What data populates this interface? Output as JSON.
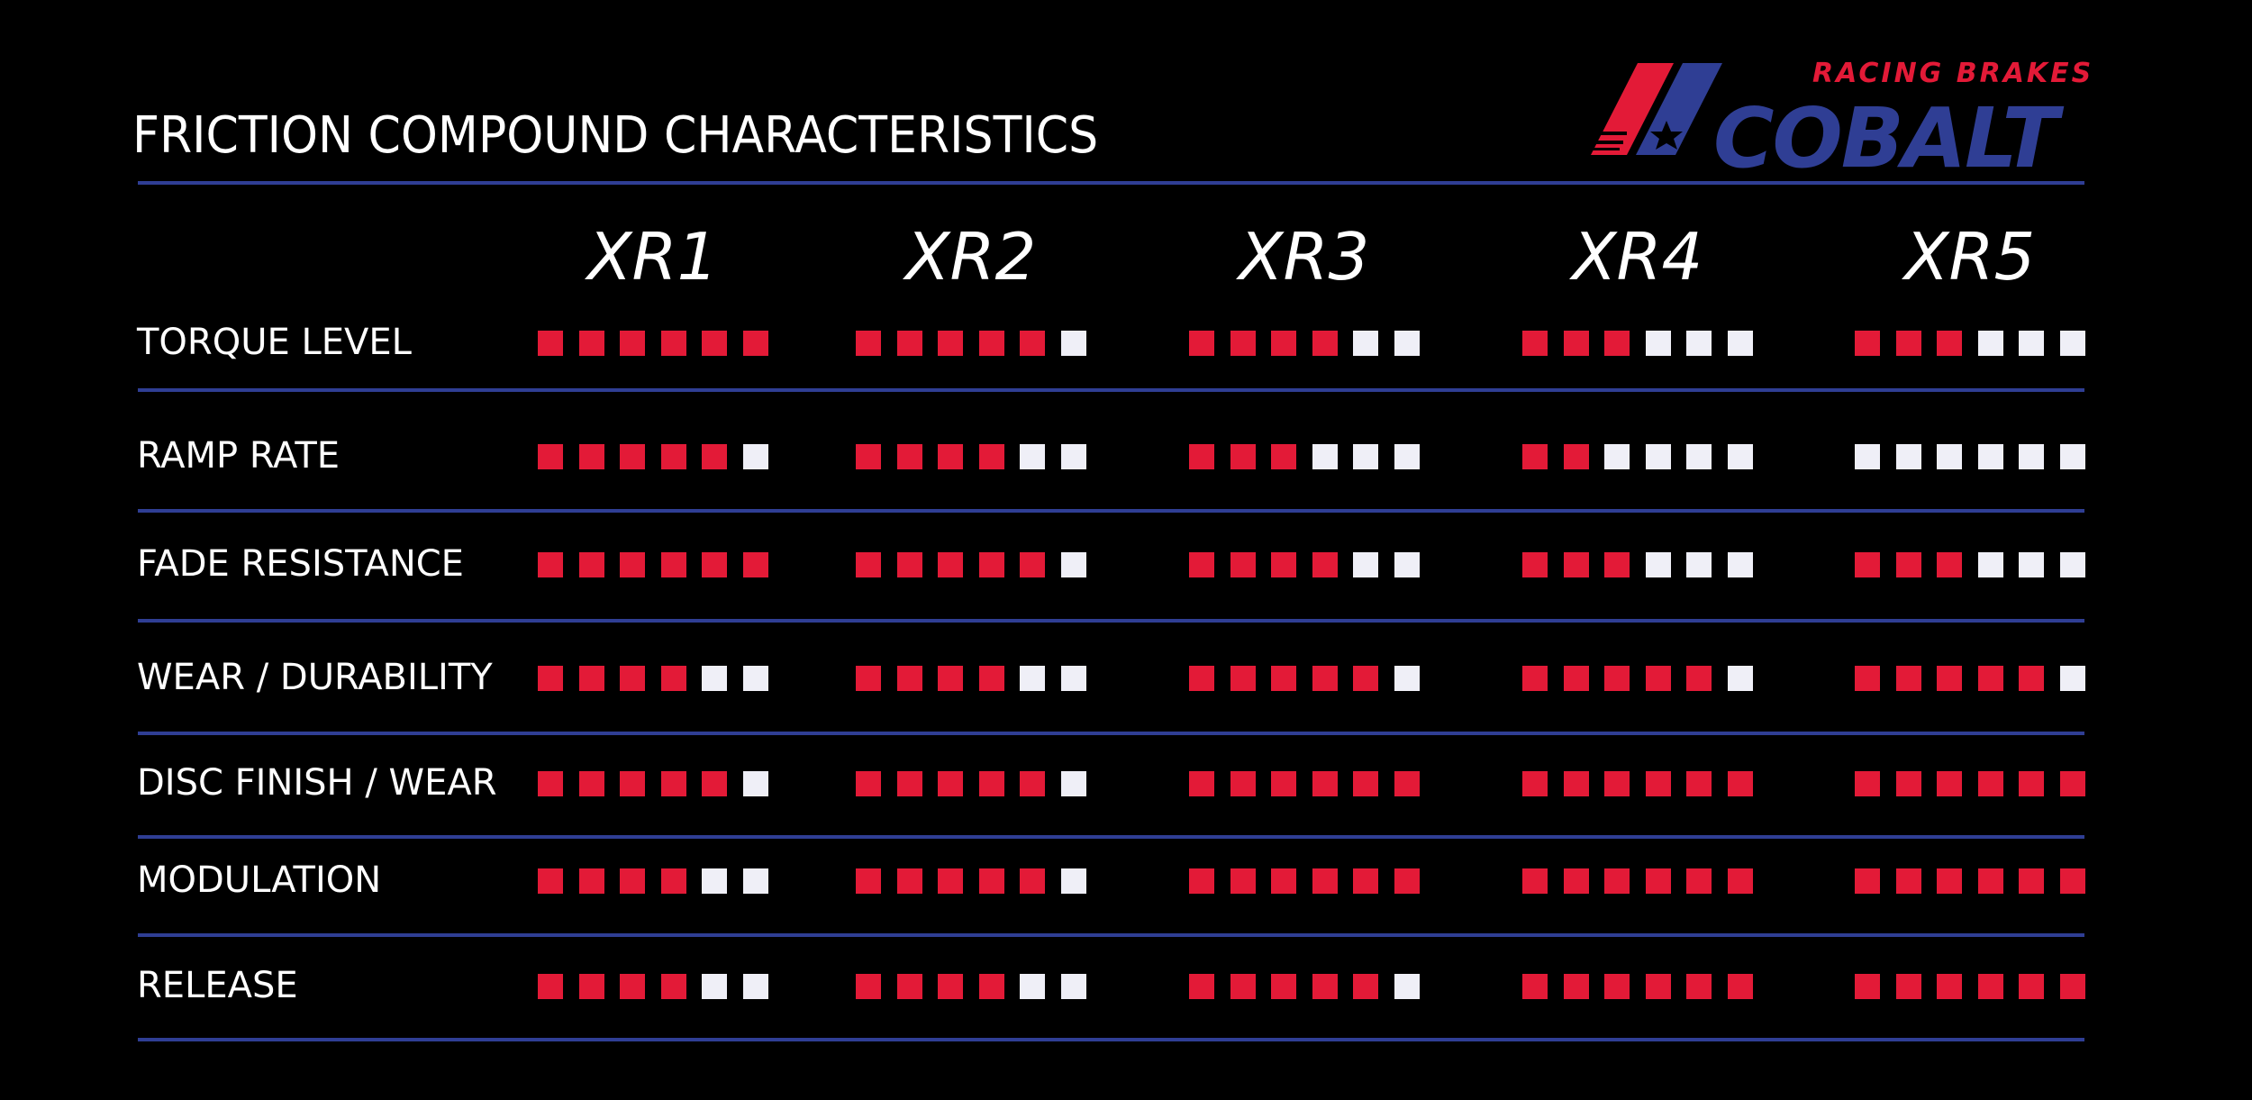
{
  "brand": {
    "name": "COBALT",
    "tagline": "RACING BRAKES"
  },
  "colors": {
    "background": "#000000",
    "filled": "#e31a37",
    "empty": "#efeff7",
    "divider": "#2f3e94",
    "text": "#ffffff"
  },
  "chart_data": {
    "type": "table",
    "title": "FRICTION COMPOUND CHARACTERISTICS",
    "scale_max": 6,
    "columns": [
      "XR1",
      "XR2",
      "XR3",
      "XR4",
      "XR5"
    ],
    "rows": [
      {
        "label": "TORQUE LEVEL",
        "values": [
          6,
          5,
          4,
          3,
          3
        ]
      },
      {
        "label": "RAMP RATE",
        "values": [
          5,
          4,
          3,
          2,
          0
        ]
      },
      {
        "label": "FADE RESISTANCE",
        "values": [
          6,
          5,
          4,
          3,
          3
        ]
      },
      {
        "label": "WEAR / DURABILITY",
        "values": [
          4,
          4,
          5,
          5,
          5
        ]
      },
      {
        "label": "DISC FINISH / WEAR",
        "values": [
          5,
          5,
          6,
          6,
          6
        ]
      },
      {
        "label": "MODULATION",
        "values": [
          4,
          5,
          6,
          6,
          6
        ]
      },
      {
        "label": "RELEASE",
        "values": [
          4,
          4,
          5,
          6,
          6
        ]
      }
    ]
  }
}
